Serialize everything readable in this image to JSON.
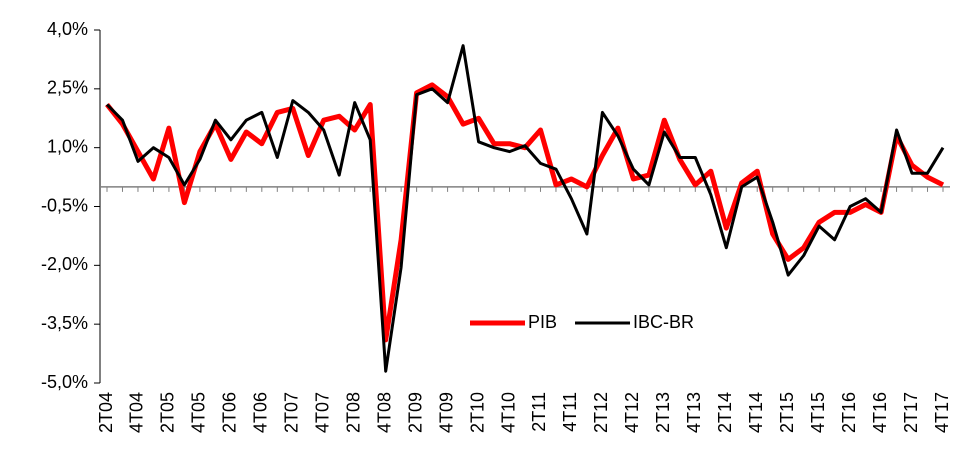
{
  "chart_data": {
    "type": "line",
    "categories": [
      "2T04",
      null,
      "4T04",
      null,
      "2T05",
      null,
      "4T05",
      null,
      "2T06",
      null,
      "4T06",
      null,
      "2T07",
      null,
      "4T07",
      null,
      "2T08",
      null,
      "4T08",
      null,
      "2T09",
      null,
      "4T09",
      null,
      "2T10",
      null,
      "4T10",
      null,
      "2T11",
      null,
      "4T11",
      null,
      "2T12",
      null,
      "4T12",
      null,
      "2T13",
      null,
      "4T13",
      null,
      "2T14",
      null,
      "4T14",
      null,
      "2T15",
      null,
      "4T15",
      null,
      "2T16",
      null,
      "4T16",
      null,
      "2T17",
      null,
      "4T17"
    ],
    "series": [
      {
        "name": "PIB",
        "color": "#ff0000",
        "values": [
          2.1,
          1.6,
          0.9,
          0.2,
          1.5,
          -0.4,
          0.9,
          1.6,
          0.7,
          1.4,
          1.1,
          1.9,
          2.0,
          0.8,
          1.7,
          1.8,
          1.45,
          2.1,
          -3.9,
          -1.35,
          2.4,
          2.6,
          2.3,
          1.6,
          1.75,
          1.1,
          1.1,
          1.0,
          1.45,
          0.05,
          0.2,
          0,
          0.8,
          1.5,
          0.2,
          0.3,
          1.7,
          0.7,
          0.05,
          0.4,
          -1.05,
          0.1,
          0.4,
          -1.2,
          -1.85,
          -1.55,
          -0.9,
          -0.65,
          -0.65,
          -0.45,
          -0.65,
          1.3,
          0.55,
          0.25,
          0.05
        ]
      },
      {
        "name": "IBC-BR",
        "color": "#000000",
        "values": [
          2.1,
          1.7,
          0.65,
          1.0,
          0.75,
          0.05,
          0.7,
          1.7,
          1.2,
          1.7,
          1.9,
          0.75,
          2.2,
          1.9,
          1.45,
          0.3,
          2.15,
          1.2,
          -4.7,
          -2.05,
          2.35,
          2.5,
          2.15,
          3.6,
          1.15,
          1.0,
          0.9,
          1.05,
          0.6,
          0.45,
          -0.3,
          -1.2,
          1.9,
          1.3,
          0.45,
          0.05,
          1.4,
          0.75,
          0.75,
          -0.2,
          -1.55,
          0,
          0.25,
          -0.9,
          -2.25,
          -1.75,
          -1.0,
          -1.35,
          -0.5,
          -0.3,
          -0.65,
          1.45,
          0.35,
          0.35,
          1.0
        ]
      }
    ],
    "ylim": [
      -5,
      4
    ],
    "yticks": [
      {
        "value": -5,
        "label": "-5,0%"
      },
      {
        "value": -3.5,
        "label": "-3,5%"
      },
      {
        "value": -2,
        "label": "-2,0%"
      },
      {
        "value": -0.5,
        "label": "-0,5%"
      },
      {
        "value": 1,
        "label": "1,0%"
      },
      {
        "value": 2.5,
        "label": "2,5%"
      },
      {
        "value": 4,
        "label": "4,0%"
      }
    ],
    "legend": "lower center"
  }
}
